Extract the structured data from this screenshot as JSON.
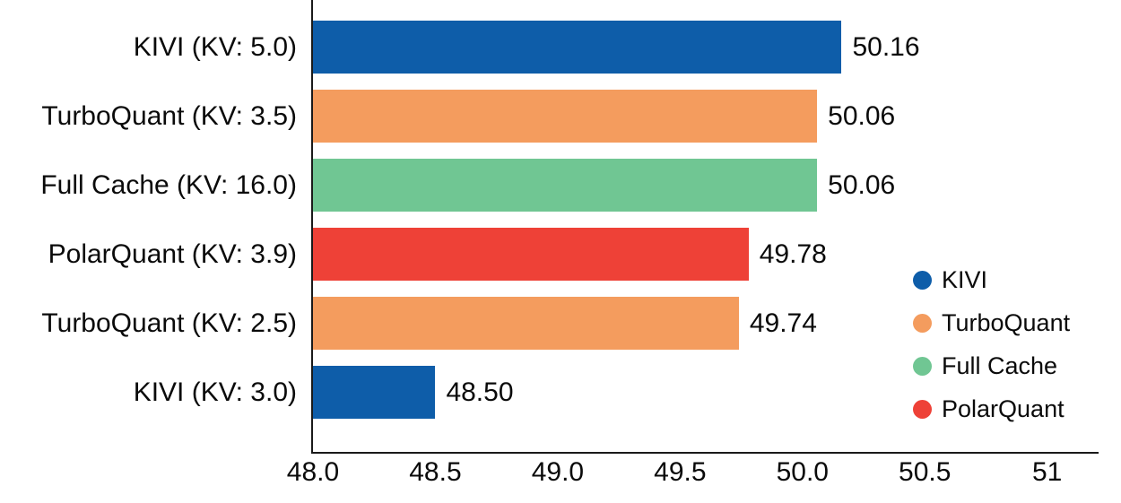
{
  "chart_data": {
    "type": "bar",
    "orientation": "horizontal",
    "categories": [
      "KIVI (KV: 5.0)",
      "TurboQuant (KV: 3.5)",
      "Full Cache (KV: 16.0)",
      "PolarQuant (KV: 3.9)",
      "TurboQuant (KV: 2.5)",
      "KIVI (KV: 3.0)"
    ],
    "values": [
      50.16,
      50.06,
      50.06,
      49.78,
      49.74,
      48.5
    ],
    "value_labels": [
      "50.16",
      "50.06",
      "50.06",
      "49.78",
      "49.74",
      "48.50"
    ],
    "bar_series": [
      "KIVI",
      "TurboQuant",
      "Full Cache",
      "PolarQuant",
      "TurboQuant",
      "KIVI"
    ],
    "series_colors": {
      "KIVI": "#0e5da9",
      "TurboQuant": "#f49c5e",
      "Full Cache": "#70c693",
      "PolarQuant": "#ee4137"
    },
    "x_ticks": [
      "48.0",
      "48.5",
      "49.0",
      "49.5",
      "50.0",
      "50.5",
      "51"
    ],
    "x_tick_values": [
      48.0,
      48.5,
      49.0,
      49.5,
      50.0,
      50.5,
      51.0
    ],
    "xlim": [
      48.0,
      51.21
    ],
    "grid": false,
    "legend": {
      "position": "right",
      "entries": [
        {
          "label": "KIVI",
          "color": "#0e5da9"
        },
        {
          "label": "TurboQuant",
          "color": "#f49c5e"
        },
        {
          "label": "Full Cache",
          "color": "#70c693"
        },
        {
          "label": "PolarQuant",
          "color": "#ee4137"
        }
      ]
    },
    "spine_color": "#1a1a1a",
    "text_color": "#0a0a0a"
  }
}
